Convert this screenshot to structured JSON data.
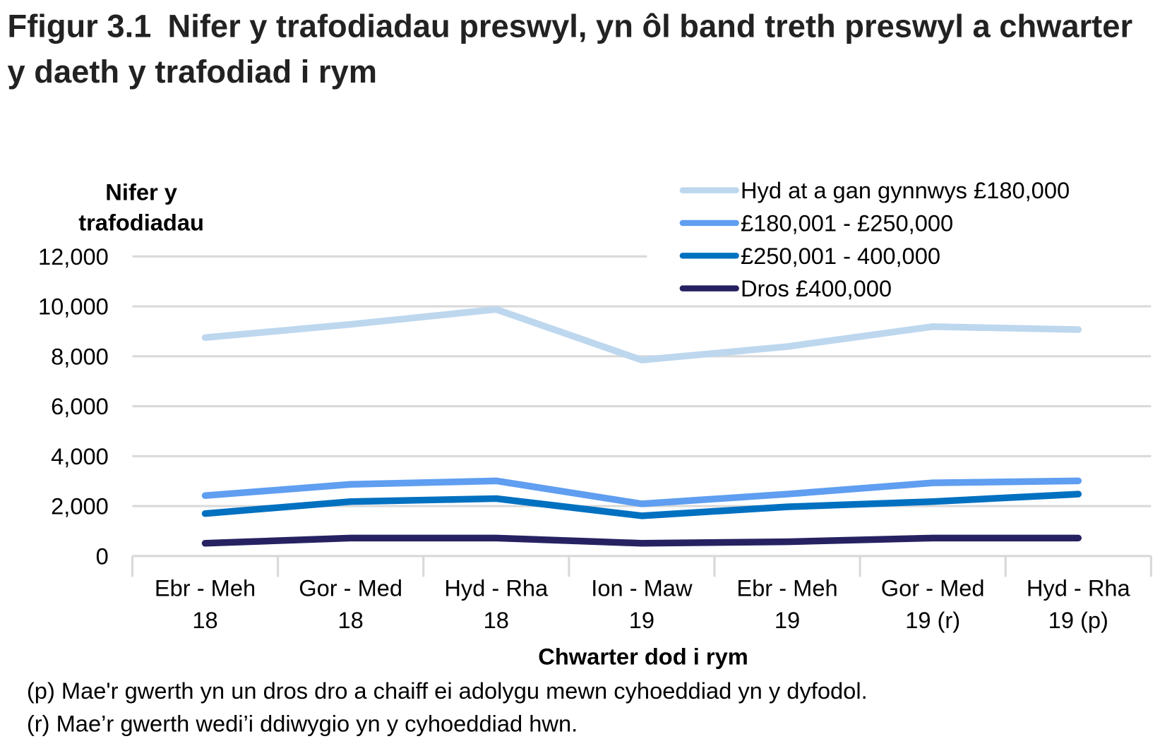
{
  "title": {
    "number": "Ffigur 3.1",
    "text": "Nifer y trafodiadau preswyl, yn ôl band treth preswyl a chwarter y daeth y trafodiad i rym"
  },
  "chart_data": {
    "type": "line",
    "ylabel": "Nifer y trafodiadau",
    "xlabel": "Chwarter dod i rym",
    "ylim": [
      0,
      12000
    ],
    "yticks": [
      "0",
      "2,000",
      "4,000",
      "6,000",
      "8,000",
      "10,000",
      "12,000"
    ],
    "ytick_values": [
      0,
      2000,
      4000,
      6000,
      8000,
      10000,
      12000
    ],
    "grid": true,
    "legend_position": "top-right",
    "categories": [
      [
        "Ebr - Meh",
        "18"
      ],
      [
        "Gor - Med",
        "18"
      ],
      [
        "Hyd - Rha",
        "18"
      ],
      [
        "Ion - Maw",
        "19"
      ],
      [
        "Ebr - Meh",
        "19"
      ],
      [
        "Gor - Med",
        "19 (r)"
      ],
      [
        "Hyd - Rha",
        "19 (p)"
      ]
    ],
    "series": [
      {
        "name": "Hyd at a gan gynnwys £180,000",
        "color": "#bdd7ee",
        "values": [
          8750,
          9280,
          9880,
          7850,
          8390,
          9190,
          9070
        ]
      },
      {
        "name": "£180,001 - £250,000",
        "color": "#5f9ef0",
        "values": [
          2420,
          2870,
          3010,
          2090,
          2480,
          2930,
          3010
        ]
      },
      {
        "name": "£250,001 - 400,000",
        "color": "#0070c0",
        "values": [
          1700,
          2180,
          2300,
          1610,
          1970,
          2180,
          2480
        ]
      },
      {
        "name": "Dros £400,000",
        "color": "#262262",
        "values": [
          510,
          720,
          720,
          510,
          570,
          720,
          720
        ]
      }
    ]
  },
  "notes": [
    "(p) Mae'r gwerth yn un dros dro a chaiff ei adolygu mewn cyhoeddiad yn y dyfodol.",
    "(r) Mae’r gwerth wedi’i ddiwygio yn y cyhoeddiad hwn."
  ]
}
